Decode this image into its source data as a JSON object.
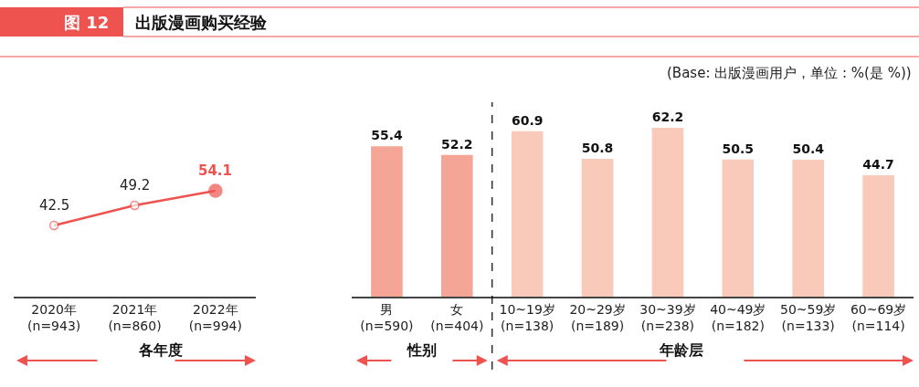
{
  "chart_data": [
    {
      "type": "line",
      "title": "出版漫画购买经验",
      "annotations": [
        "图 12",
        "各年度"
      ],
      "categories": [
        "2020年\n(n=943)",
        "2021年\n(n=860)",
        "2022年\n(n=994)"
      ],
      "marker": "circle",
      "data_labels": true,
      "series": [
        {
          "color": "#ef5350",
          "values": [
            42.5,
            49.2,
            54.1
          ]
        }
      ]
    },
    {
      "type": "bar",
      "subtitle": "(Base: 出版漫画用户，单位 : %(是 %))",
      "annotations": [
        "性别",
        "年龄层"
      ],
      "categories": [
        "男\n(n=590)",
        "女\n(n=404)",
        "10~19岁\n(n=138)",
        "20~29岁\n(n=189)",
        "30~39岁\n(n=238)",
        "40~49岁\n(n=182)",
        "50~59岁\n(n=133)",
        "60~69岁\n(n=114)"
      ],
      "data_labels": true,
      "values": [
        55.4,
        52.2,
        60.9,
        50.8,
        62.2,
        50.5,
        50.4,
        44.7
      ],
      "colors": [
        "#f5a596",
        "#f5a596",
        "#f9c9b9",
        "#f9c9b9",
        "#f9c9b9",
        "#f9c9b9",
        "#f9c9b9",
        "#f9c9b9"
      ]
    }
  ]
}
